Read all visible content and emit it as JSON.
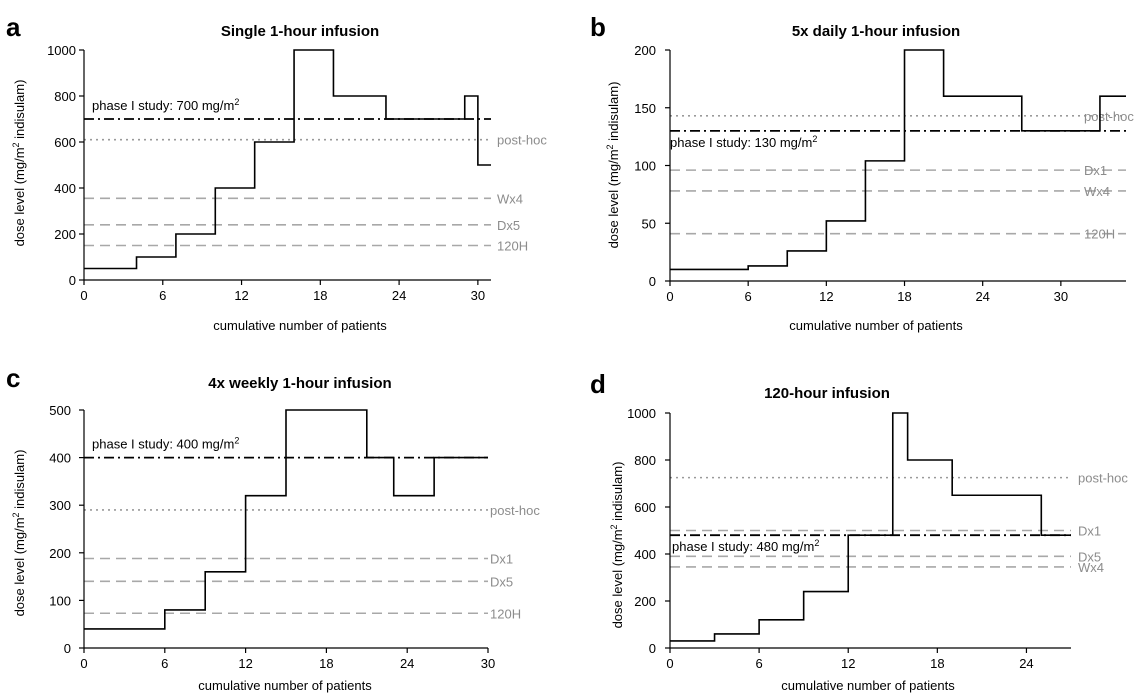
{
  "chart_data": [
    {
      "type": "line",
      "panel": "a",
      "title": "Single 1-hour infusion",
      "xlabel": "cumulative number of patients",
      "ylabel": "dose level (mg/m",
      "ylabel_sup": "2",
      "ylabel_tail": " indisulam)",
      "xlim": [
        0,
        31
      ],
      "ylim": [
        0,
        1000
      ],
      "xticks": [
        "0",
        "6",
        "12",
        "18",
        "24",
        "30"
      ],
      "yticks": [
        "0",
        "200",
        "400",
        "600",
        "800",
        "1000"
      ],
      "xtick_values": [
        0,
        6,
        12,
        18,
        24,
        30
      ],
      "ytick_values": [
        0,
        200,
        400,
        600,
        800,
        1000
      ],
      "steps": [
        [
          0,
          50
        ],
        [
          4,
          100
        ],
        [
          7,
          200
        ],
        [
          10,
          400
        ],
        [
          13,
          600
        ],
        [
          16,
          1000
        ],
        [
          19,
          800
        ],
        [
          23,
          700
        ],
        [
          29,
          800
        ],
        [
          30,
          500
        ],
        [
          31,
          500
        ]
      ],
      "phase_line": {
        "value": 700,
        "label": "phase I study: 700 mg/m",
        "sup": "2"
      },
      "reference_lines": [
        {
          "label": "post-hoc",
          "value": 610,
          "style": "dotted"
        },
        {
          "label": "Wx4",
          "value": 355,
          "style": "dashed"
        },
        {
          "label": "Dx5",
          "value": 240,
          "style": "dashed"
        },
        {
          "label": "120H",
          "value": 150,
          "style": "dashed"
        }
      ]
    },
    {
      "type": "line",
      "panel": "b",
      "title": "5x daily 1-hour infusion",
      "xlabel": "cumulative number of patients",
      "ylabel": "dose level (mg/m",
      "ylabel_sup": "2",
      "ylabel_tail": " indisulam)",
      "xlim": [
        0,
        35
      ],
      "ylim": [
        0,
        200
      ],
      "xticks": [
        "0",
        "6",
        "12",
        "18",
        "24",
        "30"
      ],
      "yticks": [
        "0",
        "50",
        "100",
        "150",
        "200"
      ],
      "xtick_values": [
        0,
        6,
        12,
        18,
        24,
        30
      ],
      "ytick_values": [
        0,
        50,
        100,
        150,
        200
      ],
      "steps": [
        [
          0,
          10
        ],
        [
          6,
          13
        ],
        [
          9,
          26
        ],
        [
          12,
          52
        ],
        [
          15,
          104
        ],
        [
          18,
          200
        ],
        [
          21,
          160
        ],
        [
          27,
          130
        ],
        [
          33,
          160
        ],
        [
          35,
          160
        ]
      ],
      "phase_line": {
        "value": 130,
        "label": "phase I study: 130 mg/m",
        "sup": "2"
      },
      "reference_lines": [
        {
          "label": "post-hoc",
          "value": 143,
          "style": "dotted"
        },
        {
          "label": "Dx1",
          "value": 96,
          "style": "dashed"
        },
        {
          "label": "Wx4",
          "value": 78,
          "style": "dashed"
        },
        {
          "label": "120H",
          "value": 41,
          "style": "dashed"
        }
      ]
    },
    {
      "type": "line",
      "panel": "c",
      "title": "4x weekly 1-hour infusion",
      "xlabel": "cumulative number of patients",
      "ylabel": "dose level (mg/m",
      "ylabel_sup": "2",
      "ylabel_tail": " indisulam)",
      "xlim": [
        0,
        30
      ],
      "ylim": [
        0,
        500
      ],
      "xticks": [
        "0",
        "6",
        "12",
        "18",
        "24",
        "30"
      ],
      "yticks": [
        "0",
        "100",
        "200",
        "300",
        "400",
        "500"
      ],
      "xtick_values": [
        0,
        6,
        12,
        18,
        24,
        30
      ],
      "ytick_values": [
        0,
        100,
        200,
        300,
        400,
        500
      ],
      "steps": [
        [
          0,
          40
        ],
        [
          6,
          80
        ],
        [
          9,
          160
        ],
        [
          12,
          320
        ],
        [
          15,
          500
        ],
        [
          21,
          400
        ],
        [
          23,
          320
        ],
        [
          26,
          400
        ],
        [
          30,
          400
        ]
      ],
      "phase_line": {
        "value": 400,
        "label": "phase I study: 400 mg/m",
        "sup": "2"
      },
      "reference_lines": [
        {
          "label": "post-hoc",
          "value": 290,
          "style": "dotted"
        },
        {
          "label": "Dx1",
          "value": 188,
          "style": "dashed"
        },
        {
          "label": "Dx5",
          "value": 140,
          "style": "dashed"
        },
        {
          "label": "120H",
          "value": 73,
          "style": "dashed"
        }
      ]
    },
    {
      "type": "line",
      "panel": "d",
      "title": "120-hour infusion",
      "xlabel": "cumulative number of patients",
      "ylabel": "dose level (mg/m",
      "ylabel_sup": "2",
      "ylabel_tail": " indisulam)",
      "xlim": [
        0,
        27
      ],
      "ylim": [
        0,
        1000
      ],
      "xticks": [
        "0",
        "6",
        "12",
        "18",
        "24"
      ],
      "yticks": [
        "0",
        "200",
        "400",
        "600",
        "800",
        "1000"
      ],
      "xtick_values": [
        0,
        6,
        12,
        18,
        24
      ],
      "ytick_values": [
        0,
        200,
        400,
        600,
        800,
        1000
      ],
      "steps": [
        [
          0,
          30
        ],
        [
          3,
          60
        ],
        [
          6,
          120
        ],
        [
          9,
          240
        ],
        [
          12,
          480
        ],
        [
          15,
          1000
        ],
        [
          16,
          800
        ],
        [
          19,
          650
        ],
        [
          25,
          480
        ],
        [
          27,
          480
        ]
      ],
      "phase_line": {
        "value": 480,
        "label": "phase I study: 480 mg/m",
        "sup": "2"
      },
      "reference_lines": [
        {
          "label": "post-hoc",
          "value": 725,
          "style": "dotted"
        },
        {
          "label": "Dx1",
          "value": 500,
          "style": "dashed"
        },
        {
          "label": "Dx5",
          "value": 390,
          "style": "dashed"
        },
        {
          "label": "Wx4",
          "value": 345,
          "style": "dashed"
        }
      ]
    }
  ]
}
